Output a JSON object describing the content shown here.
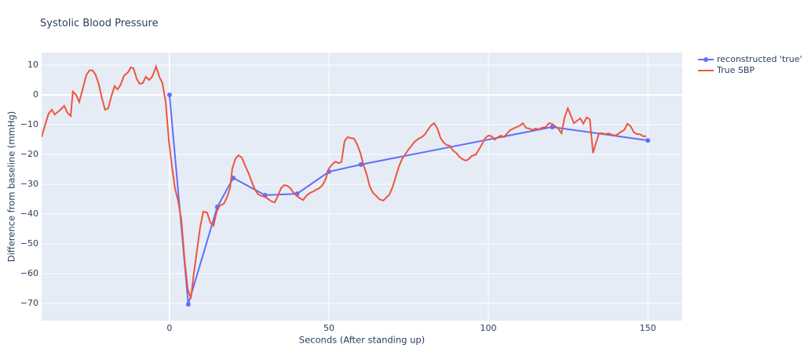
{
  "chart_data": {
    "type": "line",
    "title": "Systolic Blood Pressure",
    "x_label": "Seconds (After standing up)",
    "y_label": "Difference from baseline (mmHg)",
    "xlim": [
      -40.1,
      160.8
    ],
    "ylim": [
      -75.8,
      14.2
    ],
    "xticks": [
      0,
      50,
      100,
      150
    ],
    "yticks": [
      {
        "value": -70,
        "label": "−70"
      },
      {
        "value": -60,
        "label": "−60"
      },
      {
        "value": -50,
        "label": "−50"
      },
      {
        "value": -40,
        "label": "−40"
      },
      {
        "value": -30,
        "label": "−30"
      },
      {
        "value": -20,
        "label": "−20"
      },
      {
        "value": -10,
        "label": "−10"
      },
      0,
      10
    ],
    "grid": true,
    "series": [
      {
        "name": "reconstructed 'true' SBP",
        "color": "#636efa",
        "markers": true,
        "x": [
          0,
          5.9,
          15,
          20,
          30,
          40,
          50,
          60,
          120,
          150
        ],
        "values": [
          0,
          -70.3,
          -37.6,
          -27.9,
          -33.7,
          -33.2,
          -25.8,
          -23.4,
          -10.8,
          -15.3
        ]
      },
      {
        "name": "True SBP",
        "color": "#ef553b",
        "markers": false,
        "x": [
          -40.1,
          -38.9,
          -37.9,
          -36.9,
          -36,
          -34.5,
          -33,
          -32,
          -31,
          -30.3,
          -29.3,
          -28.3,
          -27.1,
          -26.1,
          -25.1,
          -24.1,
          -23.2,
          -22.2,
          -21.2,
          -20.2,
          -19.2,
          -18.2,
          -17.2,
          -16.3,
          -15.3,
          -14.3,
          -13,
          -12.1,
          -11.3,
          -10.3,
          -9.4,
          -8.4,
          -7.4,
          -6.4,
          -5.4,
          -4.2,
          -3.2,
          -2.2,
          -1.2,
          -0.2,
          0.7,
          1.7,
          2.7,
          3.7,
          4.7,
          5.7,
          6.7,
          7.6,
          8.6,
          9.6,
          10.6,
          11.8,
          12.8,
          13.8,
          14.8,
          15.8,
          17,
          18,
          19,
          19.7,
          20.7,
          21.7,
          22.7,
          23.6,
          24.9,
          25.9,
          26.8,
          27.8,
          28.8,
          29.8,
          31,
          32,
          33,
          34,
          35,
          36,
          36.9,
          37.9,
          38.9,
          39.9,
          40.9,
          41.9,
          42.9,
          44.1,
          45.1,
          46.1,
          47,
          48,
          49,
          50,
          51,
          52,
          53,
          53.9,
          54.9,
          55.9,
          56.9,
          57.9,
          58.9,
          59.9,
          60.8,
          61.8,
          62.8,
          63.8,
          64.8,
          65.8,
          67,
          68,
          69,
          70,
          70.9,
          71.9,
          72.9,
          73.9,
          74.9,
          75.9,
          76.8,
          78.1,
          79.1,
          80,
          81,
          82,
          83,
          84,
          85,
          86,
          86.9,
          87.9,
          88.9,
          89.9,
          90.9,
          91.9,
          92.9,
          93.8,
          94.8,
          96.1,
          97,
          98,
          99,
          100,
          101,
          102,
          103,
          103.9,
          104.9,
          105.9,
          106.9,
          107.9,
          108.9,
          109.9,
          110.8,
          111.8,
          112.8,
          113.8,
          114.8,
          115.8,
          116.7,
          118,
          119,
          119.9,
          120.9,
          121.9,
          122.9,
          123.9,
          124.9,
          125.9,
          126.8,
          127.8,
          128.8,
          129.8,
          130.8,
          131.8,
          132.8,
          133.7,
          134.7,
          135.7,
          136.7,
          137.7,
          138.7,
          139.7,
          140.6,
          141.6,
          142.6,
          143.6,
          144.6,
          145.6,
          146.6,
          147.5,
          148.5,
          149.5
        ],
        "values": [
          -14.2,
          -9.7,
          -6.3,
          -5,
          -6.6,
          -5.3,
          -3.7,
          -6,
          -7.1,
          1.1,
          0,
          -2.4,
          2.4,
          6.6,
          8.2,
          8.2,
          6.8,
          3.7,
          -1.1,
          -5,
          -4.5,
          -0.3,
          2.9,
          1.8,
          3.4,
          6.3,
          7.6,
          9.2,
          8.9,
          5.5,
          3.7,
          3.9,
          6.1,
          5,
          6.1,
          9.5,
          6.1,
          3.9,
          -2.4,
          -15.5,
          -23.4,
          -31.3,
          -35.5,
          -41.8,
          -55,
          -65,
          -68.4,
          -60.3,
          -52.4,
          -44.5,
          -39.2,
          -39.5,
          -42.9,
          -43.9,
          -39.2,
          -37.1,
          -36.6,
          -34.5,
          -31.3,
          -24.7,
          -21.3,
          -20.3,
          -21.1,
          -23.4,
          -26.6,
          -29.5,
          -31.8,
          -33.4,
          -33.9,
          -34.2,
          -35,
          -35.8,
          -36.1,
          -33.9,
          -31.3,
          -30.3,
          -30.5,
          -31.3,
          -32.9,
          -33.9,
          -34.7,
          -35.3,
          -33.9,
          -32.9,
          -32.4,
          -31.8,
          -31.3,
          -30.3,
          -28.2,
          -24.7,
          -23.4,
          -22.4,
          -22.9,
          -22.6,
          -15.5,
          -14.2,
          -14.5,
          -14.7,
          -16.8,
          -19.7,
          -23.4,
          -26.6,
          -30.8,
          -32.9,
          -33.9,
          -35,
          -35.5,
          -34.5,
          -33.4,
          -30.8,
          -27.6,
          -24.2,
          -21.6,
          -20,
          -18.4,
          -17.1,
          -15.8,
          -14.7,
          -14.2,
          -13.4,
          -11.8,
          -10.3,
          -9.5,
          -11.3,
          -14.5,
          -16.1,
          -16.8,
          -17.1,
          -18.7,
          -19.5,
          -20.8,
          -21.6,
          -22.1,
          -21.6,
          -20.5,
          -20,
          -18.4,
          -16.6,
          -14.5,
          -13.7,
          -13.9,
          -15,
          -14.2,
          -13.7,
          -14.2,
          -12.9,
          -11.8,
          -11.3,
          -10.8,
          -10.3,
          -9.5,
          -11.1,
          -11.3,
          -11.8,
          -11.3,
          -11.6,
          -11.1,
          -10.8,
          -9.5,
          -9.7,
          -10.5,
          -11.3,
          -12.9,
          -7.6,
          -4.5,
          -7.1,
          -9.5,
          -8.7,
          -7.9,
          -9.7,
          -7.6,
          -8.2,
          -19.5,
          -16.3,
          -12.9,
          -12.9,
          -13.2,
          -12.9,
          -13.4,
          -13.7,
          -13.2,
          -12.4,
          -11.8,
          -9.7,
          -10.5,
          -12.6,
          -13.2,
          -13.2,
          -13.9,
          -13.9
        ]
      }
    ]
  }
}
